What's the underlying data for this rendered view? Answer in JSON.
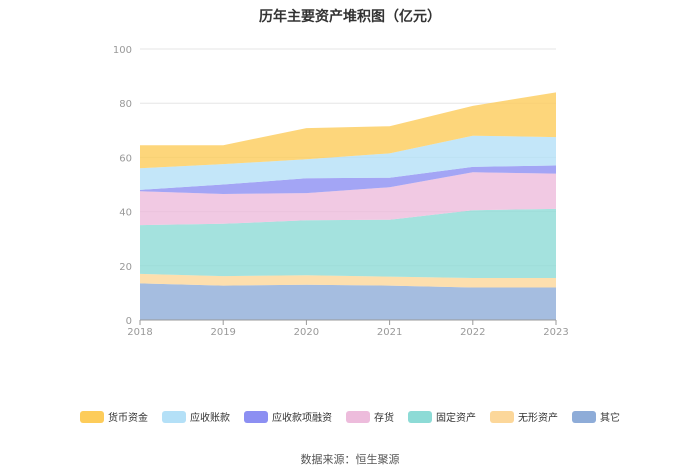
{
  "chart_data": {
    "type": "area",
    "stacked": true,
    "title": "历年主要资产堆积图（亿元）",
    "categories": [
      "2018",
      "2019",
      "2020",
      "2021",
      "2022",
      "2023"
    ],
    "ylim": [
      0,
      100
    ],
    "yticks": [
      0,
      20,
      40,
      60,
      80,
      100
    ],
    "series": [
      {
        "name": "其它",
        "color": "#8eacd8",
        "values": [
          13.5,
          12.7,
          13.0,
          12.7,
          12.0,
          12.0
        ]
      },
      {
        "name": "无形资产",
        "color": "#fcd79a",
        "values": [
          3.5,
          3.5,
          3.5,
          3.3,
          3.5,
          3.5
        ]
      },
      {
        "name": "固定资产",
        "color": "#8ddbd6",
        "values": [
          18.0,
          19.3,
          20.3,
          21.0,
          25.0,
          25.5
        ]
      },
      {
        "name": "存货",
        "color": "#edbcdc",
        "values": [
          12.5,
          11.0,
          10.0,
          12.0,
          14.0,
          13.0
        ]
      },
      {
        "name": "应收款项融资",
        "color": "#8c8ff2",
        "values": [
          0.5,
          3.5,
          5.5,
          3.5,
          2.0,
          3.0
        ]
      },
      {
        "name": "应收账款",
        "color": "#b4e0f7",
        "values": [
          8.0,
          7.5,
          7.0,
          9.0,
          11.5,
          10.5
        ]
      },
      {
        "name": "货币资金",
        "color": "#fdcc5a",
        "values": [
          8.5,
          7.0,
          11.5,
          10.0,
          11.0,
          16.5
        ]
      }
    ],
    "legend_order": [
      "货币资金",
      "应收账款",
      "应收款项融资",
      "存货",
      "固定资产",
      "无形资产",
      "其它"
    ],
    "legend_position": "bottom"
  },
  "source": "数据来源：恒生聚源"
}
